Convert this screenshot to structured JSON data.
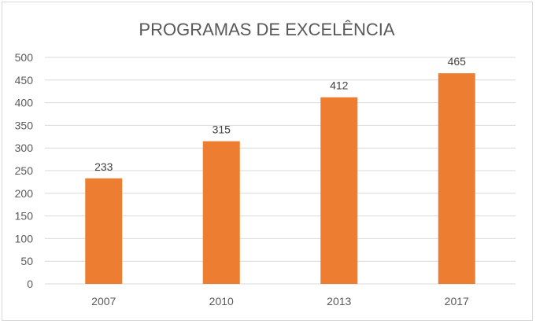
{
  "chart_data": {
    "type": "bar",
    "title": "PROGRAMAS DE EXCELÊNCIA",
    "categories": [
      "2007",
      "2010",
      "2013",
      "2017"
    ],
    "values": [
      233,
      315,
      412,
      465
    ],
    "xlabel": "",
    "ylabel": "",
    "ylim": [
      0,
      500
    ],
    "yticks": [
      0,
      50,
      100,
      150,
      200,
      250,
      300,
      350,
      400,
      450,
      500
    ],
    "grid": true,
    "legend": "none",
    "data_labels": true,
    "bar_color": "#ed7d31",
    "grid_color": "#d9d9d9"
  }
}
